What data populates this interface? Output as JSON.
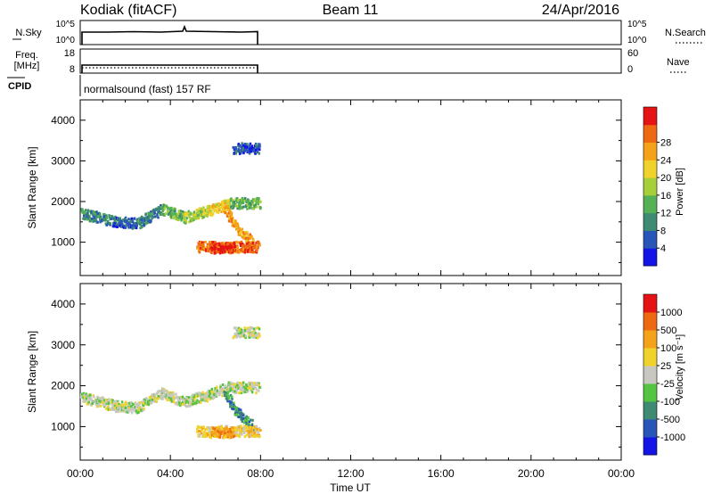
{
  "header": {
    "station": "Kodiak (fitACF)",
    "beam": "Beam 11",
    "date": "24/Apr/2016"
  },
  "panels": {
    "nsky": {
      "left_label": "N.Sky",
      "left_ticks": [
        "10^5",
        "10^0"
      ],
      "right_label": "N.Search",
      "right_ticks": [
        "10^5",
        "10^0"
      ]
    },
    "freq": {
      "left_label_1": "Freq.",
      "left_label_2": "[MHz]",
      "left_ticks": [
        "18",
        "8"
      ],
      "right_label": "Nave",
      "right_ticks": [
        "60",
        "0"
      ]
    },
    "cpid": {
      "label": "CPID",
      "value": "normalsound (fast) 157 RF"
    }
  },
  "chart_data": [
    {
      "type": "heatmap",
      "name": "power",
      "ylabel": "Slant Range [km]",
      "xlabel": "Time UT",
      "x_ticks": [
        "00:00",
        "04:00",
        "08:00",
        "12:00",
        "16:00",
        "20:00",
        "00:00"
      ],
      "xlim": [
        0,
        24
      ],
      "y_ticks": [
        1000,
        2000,
        3000,
        4000
      ],
      "ylim": [
        180,
        4500
      ],
      "colorbar": {
        "label": "Power [dB]",
        "ticks": [
          "4",
          "8",
          "12",
          "16",
          "20",
          "24",
          "28"
        ],
        "colors": [
          "#1414e6",
          "#2a55b8",
          "#3e8a72",
          "#55b155",
          "#a6cf3a",
          "#f0d22c",
          "#f4a21a",
          "#ee6a12",
          "#e51414"
        ]
      },
      "bands": [
        {
          "t0": 0.05,
          "t1": 1.5,
          "r0": 1700,
          "r1": 1500,
          "val": 2
        },
        {
          "t0": 1.5,
          "t1": 2.5,
          "r0": 1500,
          "r1": 1450,
          "val": 1
        },
        {
          "t0": 2.5,
          "t1": 3.6,
          "r0": 1450,
          "r1": 1800,
          "val": 2
        },
        {
          "t0": 3.6,
          "t1": 4.6,
          "r0": 1800,
          "r1": 1600,
          "val": 3
        },
        {
          "t0": 4.6,
          "t1": 5.6,
          "r0": 1600,
          "r1": 1750,
          "val": 4
        },
        {
          "t0": 5.6,
          "t1": 6.6,
          "r0": 1750,
          "r1": 1950,
          "val": 5
        },
        {
          "t0": 6.6,
          "t1": 7.9,
          "r0": 1950,
          "r1": 1950,
          "val": 3
        },
        {
          "t0": 6.4,
          "t1": 7.0,
          "r0": 1800,
          "r1": 1300,
          "val": 6
        },
        {
          "t0": 7.0,
          "t1": 7.6,
          "r0": 1300,
          "r1": 1000,
          "val": 6
        },
        {
          "t0": 5.2,
          "t1": 7.9,
          "r0": 880,
          "r1": 880,
          "val": 7
        },
        {
          "t0": 5.8,
          "t1": 6.8,
          "r0": 850,
          "r1": 850,
          "val": 8
        },
        {
          "t0": 6.8,
          "t1": 7.9,
          "r0": 3300,
          "r1": 3300,
          "val": 1
        }
      ]
    },
    {
      "type": "heatmap",
      "name": "velocity",
      "ylabel": "Slant Range [km]",
      "xlabel": "Time UT",
      "x_ticks": [
        "00:00",
        "04:00",
        "08:00",
        "12:00",
        "16:00",
        "20:00",
        "00:00"
      ],
      "xlim": [
        0,
        24
      ],
      "y_ticks": [
        1000,
        2000,
        3000,
        4000
      ],
      "ylim": [
        180,
        4500
      ],
      "colorbar": {
        "label": "Velocity [m s⁻¹]",
        "ticks": [
          "1000",
          "500",
          "100",
          "25",
          "-25",
          "-100",
          "-500",
          "-1000"
        ],
        "colors": [
          "#1414e6",
          "#2a55b8",
          "#3e8a72",
          "#55c440",
          "#c8c8c0",
          "#f0d22c",
          "#f4a21a",
          "#ee6a12",
          "#e51414"
        ]
      },
      "bands": [
        {
          "t0": 0.05,
          "t1": 1.5,
          "r0": 1700,
          "r1": 1500,
          "val": 4
        },
        {
          "t0": 1.5,
          "t1": 2.5,
          "r0": 1500,
          "r1": 1450,
          "val": 4
        },
        {
          "t0": 2.5,
          "t1": 3.6,
          "r0": 1450,
          "r1": 1800,
          "val": 4
        },
        {
          "t0": 3.6,
          "t1": 4.6,
          "r0": 1800,
          "r1": 1600,
          "val": 4
        },
        {
          "t0": 4.6,
          "t1": 5.6,
          "r0": 1600,
          "r1": 1750,
          "val": 4
        },
        {
          "t0": 5.6,
          "t1": 6.6,
          "r0": 1750,
          "r1": 1950,
          "val": 4
        },
        {
          "t0": 6.6,
          "t1": 7.9,
          "r0": 1950,
          "r1": 1950,
          "val": 4
        },
        {
          "t0": 6.4,
          "t1": 7.0,
          "r0": 1800,
          "r1": 1300,
          "val": 2
        },
        {
          "t0": 7.0,
          "t1": 7.6,
          "r0": 1300,
          "r1": 1000,
          "val": 2
        },
        {
          "t0": 5.2,
          "t1": 7.9,
          "r0": 880,
          "r1": 880,
          "val": 5
        },
        {
          "t0": 5.8,
          "t1": 6.8,
          "r0": 850,
          "r1": 850,
          "val": 6
        },
        {
          "t0": 6.8,
          "t1": 7.9,
          "r0": 3300,
          "r1": 3300,
          "val": 4
        }
      ]
    }
  ]
}
